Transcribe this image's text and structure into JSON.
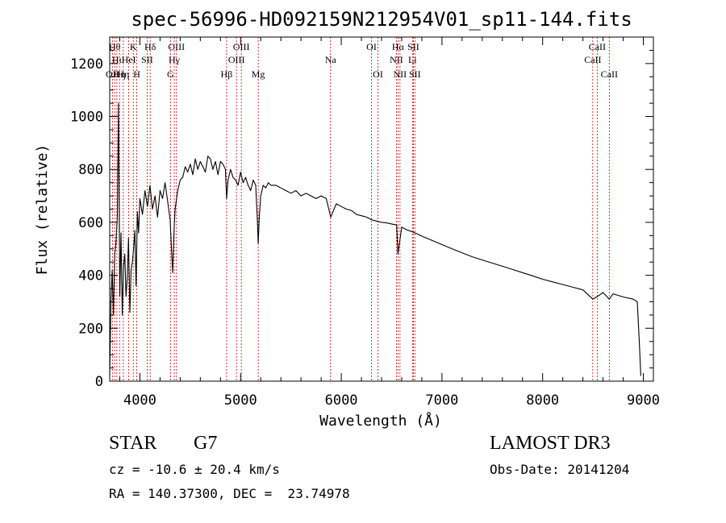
{
  "chart_data": {
    "type": "line",
    "title": "spec-56996-HD092159N212954V01_sp11-144.fits",
    "xlabel": "Wavelength (Å)",
    "ylabel": "Flux (relative)",
    "xlim": [
      3700,
      9100
    ],
    "ylim": [
      0,
      1300
    ],
    "xticks": [
      4000,
      5000,
      6000,
      7000,
      8000,
      9000
    ],
    "yticks": [
      0,
      200,
      400,
      600,
      800,
      1000,
      1200
    ],
    "xtick_labels": [
      "4000",
      "5000",
      "6000",
      "7000",
      "8000",
      "9000"
    ],
    "ytick_labels": [
      "0",
      "200",
      "400",
      "600",
      "800",
      "1000",
      "1200"
    ],
    "series": [
      {
        "name": "flux",
        "x": [
          3700,
          3712,
          3725,
          3737,
          3750,
          3762,
          3775,
          3787,
          3800,
          3812,
          3825,
          3837,
          3850,
          3862,
          3875,
          3887,
          3900,
          3912,
          3925,
          3937,
          3950,
          3962,
          3975,
          3987,
          4000,
          4025,
          4050,
          4075,
          4100,
          4125,
          4150,
          4175,
          4200,
          4225,
          4250,
          4275,
          4300,
          4325,
          4340,
          4350,
          4375,
          4400,
          4425,
          4450,
          4475,
          4500,
          4525,
          4550,
          4575,
          4600,
          4625,
          4650,
          4675,
          4700,
          4725,
          4750,
          4775,
          4800,
          4825,
          4850,
          4861,
          4875,
          4900,
          4925,
          4950,
          4975,
          5000,
          5025,
          5050,
          5075,
          5100,
          5125,
          5150,
          5165,
          5175,
          5185,
          5200,
          5225,
          5250,
          5275,
          5300,
          5350,
          5400,
          5450,
          5500,
          5550,
          5600,
          5650,
          5700,
          5750,
          5800,
          5850,
          5895,
          5950,
          6000,
          6050,
          6100,
          6150,
          6200,
          6250,
          6300,
          6350,
          6400,
          6450,
          6500,
          6550,
          6563,
          6600,
          6650,
          6700,
          6750,
          6800,
          6900,
          7000,
          7100,
          7200,
          7300,
          7400,
          7500,
          7600,
          7700,
          7800,
          7900,
          8000,
          8100,
          8200,
          8300,
          8400,
          8498,
          8542,
          8600,
          8662,
          8700,
          8800,
          8900,
          8940,
          8960,
          8975
        ],
        "y": [
          20,
          300,
          420,
          250,
          480,
          520,
          620,
          1050,
          320,
          560,
          250,
          430,
          480,
          320,
          390,
          540,
          260,
          420,
          450,
          500,
          570,
          360,
          640,
          560,
          690,
          630,
          720,
          660,
          740,
          650,
          700,
          620,
          720,
          690,
          750,
          680,
          610,
          410,
          580,
          650,
          720,
          760,
          770,
          810,
          790,
          820,
          780,
          840,
          800,
          830,
          810,
          790,
          850,
          840,
          800,
          830,
          780,
          830,
          820,
          800,
          690,
          760,
          800,
          770,
          760,
          740,
          790,
          750,
          770,
          740,
          720,
          760,
          740,
          620,
          520,
          620,
          700,
          740,
          730,
          750,
          740,
          740,
          730,
          720,
          710,
          720,
          700,
          710,
          700,
          690,
          700,
          690,
          620,
          670,
          660,
          650,
          645,
          630,
          625,
          620,
          610,
          605,
          600,
          598,
          594,
          590,
          480,
          582,
          572,
          565,
          557,
          548,
          532,
          516,
          500,
          485,
          470,
          458,
          446,
          434,
          422,
          410,
          398,
          385,
          375,
          365,
          355,
          345,
          310,
          320,
          335,
          310,
          330,
          318,
          310,
          300,
          150,
          20
        ]
      }
    ],
    "line_markers": [
      {
        "wavelength": 3727,
        "label": "OII",
        "row": 3
      },
      {
        "wavelength": 3750,
        "label": "Hθ",
        "row": 1
      },
      {
        "wavelength": 3771,
        "label": "Hι",
        "row": 2
      },
      {
        "wavelength": 3798,
        "label": "Hη",
        "row": 3
      },
      {
        "wavelength": 3835,
        "label": "Hη",
        "row": 3
      },
      {
        "wavelength": 3889,
        "label": "HeI",
        "row": 2
      },
      {
        "wavelength": 3934,
        "label": "K",
        "row": 1
      },
      {
        "wavelength": 3969,
        "label": "H",
        "row": 3
      },
      {
        "wavelength": 4072,
        "label": "SII",
        "row": 2
      },
      {
        "wavelength": 4102,
        "label": "Hδ",
        "row": 1
      },
      {
        "wavelength": 4304,
        "label": "G",
        "row": 3
      },
      {
        "wavelength": 4341,
        "label": "Hγ",
        "row": 2
      },
      {
        "wavelength": 4363,
        "label": "OIII",
        "row": 1
      },
      {
        "wavelength": 4861,
        "label": "Hβ",
        "row": 3
      },
      {
        "wavelength": 4959,
        "label": "OIII",
        "row": 2
      },
      {
        "wavelength": 5007,
        "label": "OIII",
        "row": 1
      },
      {
        "wavelength": 5175,
        "label": "Mg",
        "row": 3
      },
      {
        "wavelength": 5893,
        "label": "Na",
        "row": 2
      },
      {
        "wavelength": 6300,
        "label": "OI",
        "row": 1
      },
      {
        "wavelength": 6364,
        "label": "OI",
        "row": 3
      },
      {
        "wavelength": 6548,
        "label": "NII",
        "row": 2
      },
      {
        "wavelength": 6563,
        "label": "Hα",
        "row": 1
      },
      {
        "wavelength": 6583,
        "label": "NII",
        "row": 3
      },
      {
        "wavelength": 6707,
        "label": "Li",
        "row": 2
      },
      {
        "wavelength": 6716,
        "label": "SII",
        "row": 1
      },
      {
        "wavelength": 6731,
        "label": "SII",
        "row": 3
      },
      {
        "wavelength": 8498,
        "label": "CaII",
        "row": 2
      },
      {
        "wavelength": 8542,
        "label": "CaII",
        "row": 1
      },
      {
        "wavelength": 8662,
        "label": "CaII",
        "row": 3
      }
    ],
    "colors": {
      "axes": "#000000",
      "line": "#000000",
      "markers": "#cc0000",
      "marker_labels": "#000000"
    }
  },
  "info": {
    "object_type": "STAR",
    "subclass": "G7",
    "survey": "LAMOST DR3",
    "cz_line": "cz = -10.6 ± 20.4 km/s",
    "obs_date_line": "Obs-Date: 20141204",
    "coords_line": "RA = 140.37300, DEC =  23.74978"
  }
}
